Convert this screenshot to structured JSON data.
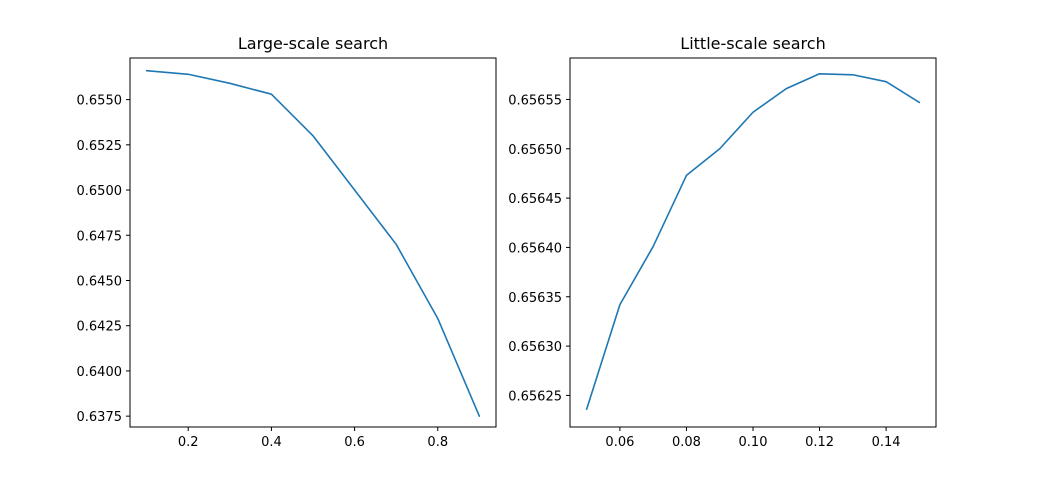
{
  "chart_data": [
    {
      "type": "line",
      "title": "Large-scale search",
      "xlabel": "",
      "ylabel": "",
      "xlim": [
        0.06,
        0.94
      ],
      "ylim": [
        0.6369,
        0.6573
      ],
      "xticks": [
        0.2,
        0.4,
        0.6,
        0.8
      ],
      "xtick_labels": [
        "0.2",
        "0.4",
        "0.6",
        "0.8"
      ],
      "yticks": [
        0.6375,
        0.64,
        0.6425,
        0.645,
        0.6475,
        0.65,
        0.6525,
        0.655
      ],
      "ytick_labels": [
        "0.6375",
        "0.6400",
        "0.6425",
        "0.6450",
        "0.6475",
        "0.6500",
        "0.6525",
        "0.6550"
      ],
      "grid": false,
      "series": [
        {
          "color": "#1f77b4",
          "x": [
            0.1,
            0.2,
            0.3,
            0.4,
            0.5,
            0.6,
            0.7,
            0.8,
            0.9
          ],
          "y": [
            0.6566,
            0.6564,
            0.6559,
            0.6553,
            0.653,
            0.65,
            0.647,
            0.6429,
            0.6375
          ]
        }
      ]
    },
    {
      "type": "line",
      "title": "Little-scale search",
      "xlabel": "",
      "ylabel": "",
      "xlim": [
        0.045,
        0.155
      ],
      "ylim": [
        0.656218,
        0.656592
      ],
      "xticks": [
        0.06,
        0.08,
        0.1,
        0.12,
        0.14
      ],
      "xtick_labels": [
        "0.06",
        "0.08",
        "0.10",
        "0.12",
        "0.14"
      ],
      "yticks": [
        0.65625,
        0.6563,
        0.65635,
        0.6564,
        0.65645,
        0.6565,
        0.65655
      ],
      "ytick_labels": [
        "0.65625",
        "0.65630",
        "0.65635",
        "0.65640",
        "0.65645",
        "0.65650",
        "0.65655"
      ],
      "grid": false,
      "series": [
        {
          "color": "#1f77b4",
          "x": [
            0.05,
            0.06,
            0.07,
            0.08,
            0.09,
            0.1,
            0.11,
            0.12,
            0.13,
            0.14,
            0.15
          ],
          "y": [
            0.656236,
            0.656342,
            0.656401,
            0.656473,
            0.6565,
            0.656537,
            0.656561,
            0.656576,
            0.656575,
            0.656568,
            0.656547
          ]
        }
      ]
    }
  ]
}
